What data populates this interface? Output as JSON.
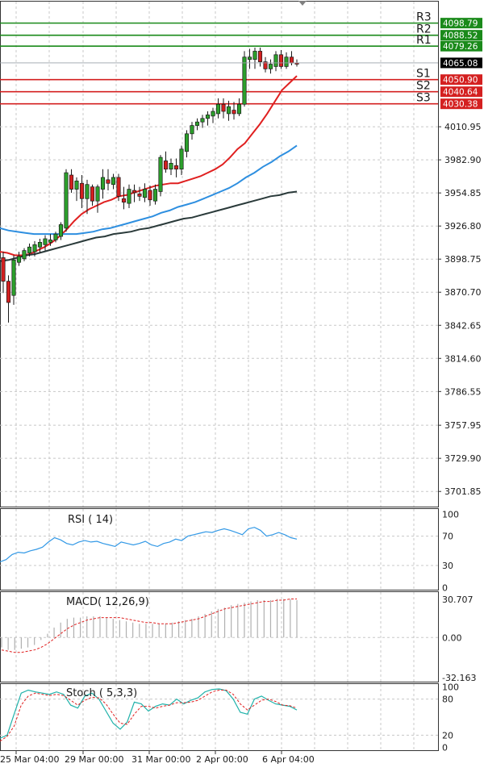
{
  "chart_data": {
    "type": "candlestick",
    "main": {
      "y_ticks": [
        "4010.95",
        "3982.90",
        "3954.85",
        "3926.80",
        "3898.75",
        "3870.70",
        "3842.65",
        "3814.60",
        "3786.55",
        "3757.95",
        "3729.90",
        "3701.85"
      ],
      "y_tick_values": [
        4010.95,
        3982.9,
        3954.85,
        3926.8,
        3898.75,
        3870.7,
        3842.65,
        3814.6,
        3786.55,
        3757.95,
        3729.9,
        3701.85
      ],
      "ylim": [
        3689,
        4117
      ],
      "current_price": "4065.08",
      "current_price_value": 4065.08,
      "levels": [
        {
          "name": "R3",
          "value": 4098.79,
          "label": "4098.79",
          "color": "#1a8a1a"
        },
        {
          "name": "R2",
          "value": 4088.52,
          "label": "4088.52",
          "color": "#1a8a1a"
        },
        {
          "name": "R1",
          "value": 4079.26,
          "label": "4079.26",
          "color": "#1a8a1a"
        },
        {
          "name": "S1",
          "value": 4050.9,
          "label": "4050.90",
          "color": "#d42020"
        },
        {
          "name": "S2",
          "value": 4040.64,
          "label": "4040.64",
          "color": "#d42020"
        },
        {
          "name": "S3",
          "value": 4030.38,
          "label": "4030.38",
          "color": "#d42020"
        }
      ],
      "candles": [
        [
          3900,
          3905,
          3870,
          3880
        ],
        [
          3880,
          3885,
          3845,
          3862
        ],
        [
          3868,
          3902,
          3860,
          3898
        ],
        [
          3896,
          3905,
          3893,
          3901
        ],
        [
          3899,
          3908,
          3897,
          3906
        ],
        [
          3904,
          3912,
          3901,
          3909
        ],
        [
          3905,
          3914,
          3901,
          3911
        ],
        [
          3909,
          3916,
          3904,
          3913
        ],
        [
          3911,
          3919,
          3906,
          3916
        ],
        [
          3913,
          3920,
          3910,
          3915
        ],
        [
          3915,
          3922,
          3913,
          3920
        ],
        [
          3918,
          3930,
          3915,
          3928
        ],
        [
          3925,
          3975,
          3922,
          3972
        ],
        [
          3970,
          3975,
          3955,
          3958
        ],
        [
          3958,
          3968,
          3948,
          3965
        ],
        [
          3963,
          3970,
          3942,
          3950
        ],
        [
          3950,
          3966,
          3937,
          3962
        ],
        [
          3960,
          3962,
          3944,
          3948
        ],
        [
          3948,
          3962,
          3938,
          3960
        ],
        [
          3958,
          3975,
          3950,
          3968
        ],
        [
          3966,
          3975,
          3957,
          3963
        ],
        [
          3962,
          3971,
          3958,
          3968
        ],
        [
          3968,
          3971,
          3948,
          3952
        ],
        [
          3950,
          3960,
          3941,
          3947
        ],
        [
          3946,
          3962,
          3942,
          3958
        ],
        [
          3957,
          3962,
          3947,
          3955
        ],
        [
          3954,
          3960,
          3948,
          3952
        ],
        [
          3951,
          3963,
          3947,
          3958
        ],
        [
          3957,
          3961,
          3944,
          3949
        ],
        [
          3948,
          3962,
          3945,
          3958
        ],
        [
          3956,
          3987,
          3952,
          3985
        ],
        [
          3982,
          3990,
          3972,
          3975
        ],
        [
          3975,
          3984,
          3970,
          3980
        ],
        [
          3978,
          3984,
          3968,
          3975
        ],
        [
          3975,
          3995,
          3970,
          3992
        ],
        [
          3990,
          4008,
          3985,
          4005
        ],
        [
          4005,
          4015,
          4000,
          4012
        ],
        [
          4012,
          4018,
          4008,
          4015
        ],
        [
          4015,
          4021,
          4010,
          4018
        ],
        [
          4018,
          4024,
          4012,
          4021
        ],
        [
          4020,
          4027,
          4014,
          4024
        ],
        [
          4022,
          4035,
          4018,
          4030
        ],
        [
          4030,
          4035,
          4018,
          4024
        ],
        [
          4022,
          4033,
          4016,
          4028
        ],
        [
          4025,
          4032,
          4017,
          4022
        ],
        [
          4022,
          4035,
          4020,
          4030
        ],
        [
          4030,
          4075,
          4028,
          4070
        ],
        [
          4068,
          4077,
          4060,
          4070
        ],
        [
          4068,
          4078,
          4060,
          4075
        ],
        [
          4075,
          4078,
          4062,
          4066
        ],
        [
          4066,
          4070,
          4057,
          4060
        ],
        [
          4060,
          4068,
          4056,
          4064
        ],
        [
          4062,
          4075,
          4058,
          4072
        ],
        [
          4072,
          4076,
          4060,
          4062
        ],
        [
          4062,
          4074,
          4060,
          4070
        ],
        [
          4070,
          4075,
          4063,
          4065
        ],
        [
          4065,
          4068,
          4062,
          4064
        ]
      ],
      "ma_series": [
        {
          "name": "MA fast",
          "color": "#e02020",
          "values": [
            3905,
            3904,
            3902,
            3902,
            3903,
            3906,
            3909,
            3913,
            3918,
            3924,
            3931,
            3937,
            3941,
            3944,
            3947,
            3949,
            3952,
            3953,
            3955,
            3957,
            3959,
            3961,
            3962,
            3963,
            3963,
            3965,
            3967,
            3969,
            3972,
            3975,
            3979,
            3985,
            3992,
            3997,
            4005,
            4013,
            4022,
            4032,
            4042,
            4048,
            4054
          ]
        },
        {
          "name": "MA medium",
          "color": "#2e8fe0",
          "values": [
            3925,
            3923,
            3922,
            3921,
            3920,
            3920,
            3920,
            3920,
            3920,
            3920,
            3921,
            3922,
            3924,
            3925,
            3927,
            3929,
            3931,
            3933,
            3935,
            3938,
            3940,
            3943,
            3945,
            3947,
            3950,
            3953,
            3956,
            3959,
            3963,
            3968,
            3972,
            3977,
            3981,
            3986,
            3990,
            3995
          ]
        },
        {
          "name": "MA slow",
          "color": "#2a3a3a",
          "values": [
            3897,
            3898,
            3900,
            3902,
            3903,
            3905,
            3907,
            3909,
            3911,
            3913,
            3915,
            3917,
            3918,
            3920,
            3921,
            3922,
            3924,
            3925,
            3927,
            3929,
            3931,
            3933,
            3934,
            3936,
            3938,
            3940,
            3942,
            3944,
            3946,
            3948,
            3950,
            3952,
            3953,
            3955,
            3956
          ]
        }
      ]
    },
    "rsi": {
      "label": "RSI ( 14)",
      "y_ticks": [
        "100",
        "70",
        "30",
        "0"
      ],
      "y_tick_values": [
        100,
        70,
        30,
        0
      ],
      "ylim": [
        -3,
        107
      ],
      "levels": [
        70,
        30
      ],
      "values": [
        35,
        38,
        45,
        48,
        47,
        50,
        52,
        55,
        62,
        68,
        65,
        60,
        58,
        62,
        64,
        62,
        63,
        60,
        58,
        56,
        62,
        60,
        58,
        60,
        63,
        58,
        56,
        60,
        62,
        66,
        64,
        70,
        72,
        74,
        76,
        75,
        78,
        80,
        78,
        75,
        72,
        80,
        82,
        78,
        70,
        72,
        75,
        72,
        68,
        66
      ]
    },
    "macd": {
      "label": "MACD( 12,26,9)",
      "y_ticks": [
        "30.707",
        "0.00",
        "-32.163"
      ],
      "y_tick_values": [
        30.707,
        0,
        -32.163
      ],
      "ylim": [
        -35.5,
        36.5
      ],
      "histogram": [
        -8,
        -10,
        -10,
        -9,
        -8,
        -6,
        -2,
        3,
        8,
        12,
        15,
        16,
        16,
        17,
        17,
        17,
        16,
        15,
        14,
        13,
        12,
        11,
        11,
        11,
        11,
        11,
        12,
        13,
        14,
        15,
        17,
        19,
        21,
        23,
        24,
        26,
        27,
        28,
        29,
        30,
        30,
        30,
        31,
        31,
        31,
        30
      ],
      "signal": [
        -10,
        -11,
        -12,
        -12,
        -11,
        -10,
        -8,
        -5,
        -1,
        3,
        7,
        10,
        12,
        14,
        15,
        16,
        16,
        16,
        16,
        15,
        14,
        13,
        12,
        12,
        11,
        11,
        11,
        12,
        13,
        14,
        15,
        17,
        19,
        21,
        23,
        24,
        25,
        26,
        27,
        28,
        29,
        29,
        30,
        30,
        31,
        31
      ]
    },
    "stoch": {
      "label": "Stoch ( 5,3,3)",
      "y_ticks": [
        "100",
        "80",
        "20",
        "0"
      ],
      "y_tick_values": [
        100,
        80,
        20,
        0
      ],
      "ylim": [
        -5,
        105
      ],
      "levels": [
        80,
        20
      ],
      "k": [
        15,
        20,
        55,
        90,
        95,
        92,
        90,
        88,
        92,
        88,
        70,
        65,
        85,
        90,
        80,
        60,
        40,
        30,
        42,
        75,
        72,
        60,
        68,
        72,
        70,
        80,
        72,
        78,
        82,
        92,
        96,
        97,
        94,
        80,
        58,
        55,
        80,
        85,
        78,
        72,
        70,
        68,
        62
      ],
      "d": [
        10,
        18,
        35,
        70,
        85,
        90,
        88,
        86,
        88,
        86,
        78,
        70,
        78,
        83,
        82,
        72,
        55,
        40,
        38,
        55,
        68,
        68,
        65,
        68,
        70,
        74,
        74,
        75,
        78,
        85,
        92,
        95,
        95,
        88,
        72,
        62,
        70,
        78,
        80,
        76,
        70,
        69,
        65
      ]
    },
    "x_ticks": [
      "25 Mar 04:00",
      "29 Mar 00:00",
      "31 Mar 00:00",
      "2 Apr 00:00",
      "6 Apr 04:00"
    ]
  }
}
